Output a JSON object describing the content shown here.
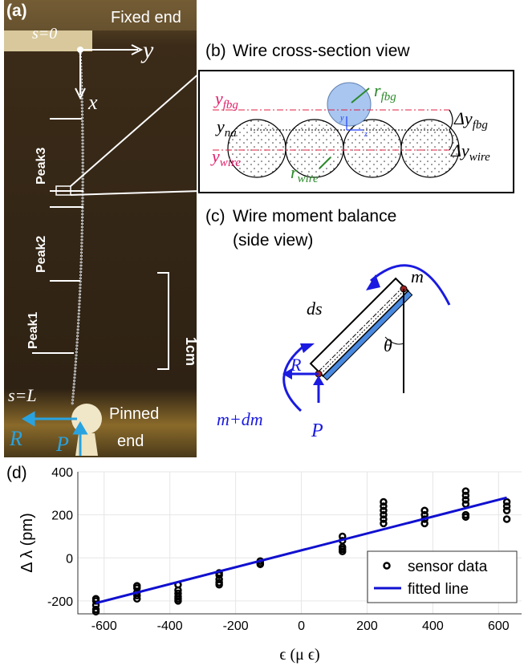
{
  "panel_a": {
    "label": "(a)",
    "s0": "s=0",
    "fixed_end": "Fixed end",
    "y_axis": "y",
    "x_axis": "x",
    "peaks": [
      "Peak3",
      "Peak2",
      "Peak1"
    ],
    "scale": "1cm",
    "sL": "s=L",
    "pinned": [
      "Pinned",
      "end"
    ],
    "R": "R",
    "P": "P"
  },
  "panel_b": {
    "label": "(b)",
    "title": "Wire cross-section view",
    "y_fbg": {
      "base": "y",
      "sub": "fbg"
    },
    "r_fbg": {
      "base": "r",
      "sub": "fbg"
    },
    "y_na": {
      "base": "y",
      "sub": "na"
    },
    "dy_fbg": {
      "base": "Δy",
      "sub": "fbg"
    },
    "y_wire": {
      "base": "y",
      "sub": "wire"
    },
    "r_wire": {
      "base": "r",
      "sub": "wire"
    },
    "dy_wire": {
      "base": "Δy",
      "sub": "wire"
    },
    "small_y": "y",
    "small_z": "z"
  },
  "panel_c": {
    "label": "(c)",
    "title": "Wire moment balance",
    "subtitle": "(side view)",
    "m": "m",
    "ds": "ds",
    "theta": "θ",
    "R": "R",
    "m_dm": "m+dm",
    "P": "P"
  },
  "chart_data": {
    "type": "scatter",
    "label": "(d)",
    "xlabel": "ϵ (μ ϵ)",
    "ylabel": "Δ λ (pm)",
    "xlim": [
      -680,
      670
    ],
    "ylim": [
      -260,
      400
    ],
    "xticks": [
      -600,
      -400,
      -200,
      0,
      200,
      400,
      600
    ],
    "yticks": [
      -200,
      0,
      200,
      400
    ],
    "grid": true,
    "legend": "lower right",
    "series": [
      {
        "name": "sensor data",
        "kind": "markers",
        "color": "#000000",
        "x": [
          -625,
          -625,
          -625,
          -625,
          -625,
          -500,
          -500,
          -500,
          -500,
          -500,
          -375,
          -375,
          -375,
          -375,
          -375,
          -375,
          -250,
          -250,
          -250,
          -250,
          -250,
          -125,
          -125,
          -125,
          125,
          125,
          125,
          125,
          125,
          250,
          250,
          250,
          250,
          250,
          250,
          375,
          375,
          375,
          375,
          500,
          500,
          500,
          500,
          500,
          500,
          625,
          625,
          625,
          625
        ],
        "values": [
          -190,
          -200,
          -220,
          -240,
          -250,
          -130,
          -140,
          -160,
          -175,
          -190,
          -125,
          -150,
          -165,
          -180,
          -190,
          -200,
          -70,
          -80,
          -100,
          -115,
          -125,
          -15,
          -25,
          -30,
          100,
          80,
          50,
          40,
          30,
          260,
          240,
          220,
          200,
          180,
          160,
          220,
          200,
          180,
          160,
          310,
          290,
          270,
          250,
          200,
          190,
          260,
          240,
          220,
          180
        ]
      },
      {
        "name": "fitted line",
        "kind": "line",
        "color": "#1010d0",
        "x": [
          -625,
          625
        ],
        "values": [
          -210,
          280
        ]
      }
    ]
  }
}
